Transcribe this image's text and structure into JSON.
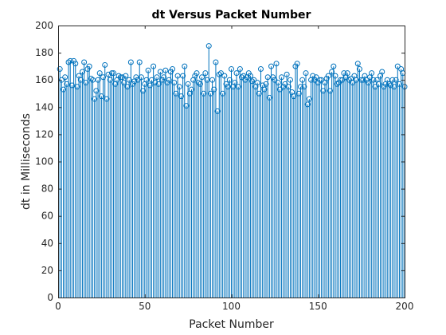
{
  "chart_data": {
    "type": "stem",
    "title": "dt Versus Packet Number",
    "xlabel": "Packet Number",
    "ylabel": "dt in Milliseconds",
    "xlim": [
      0,
      200
    ],
    "ylim": [
      0,
      200
    ],
    "xticks": [
      0,
      50,
      100,
      150,
      200
    ],
    "yticks": [
      0,
      20,
      40,
      60,
      80,
      100,
      120,
      140,
      160,
      180,
      200
    ],
    "grid": false,
    "marker": "circle",
    "color": "#0072BD",
    "x": [
      1,
      2,
      3,
      4,
      5,
      6,
      7,
      8,
      9,
      10,
      11,
      12,
      13,
      14,
      15,
      16,
      17,
      18,
      19,
      20,
      21,
      22,
      23,
      24,
      25,
      26,
      27,
      28,
      29,
      30,
      31,
      32,
      33,
      34,
      35,
      36,
      37,
      38,
      39,
      40,
      41,
      42,
      43,
      44,
      45,
      46,
      47,
      48,
      49,
      50,
      51,
      52,
      53,
      54,
      55,
      56,
      57,
      58,
      59,
      60,
      61,
      62,
      63,
      64,
      65,
      66,
      67,
      68,
      69,
      70,
      71,
      72,
      73,
      74,
      75,
      76,
      77,
      78,
      79,
      80,
      81,
      82,
      83,
      84,
      85,
      86,
      87,
      88,
      89,
      90,
      91,
      92,
      93,
      94,
      95,
      96,
      97,
      98,
      99,
      100,
      101,
      102,
      103,
      104,
      105,
      106,
      107,
      108,
      109,
      110,
      111,
      112,
      113,
      114,
      115,
      116,
      117,
      118,
      119,
      120,
      121,
      122,
      123,
      124,
      125,
      126,
      127,
      128,
      129,
      130,
      131,
      132,
      133,
      134,
      135,
      136,
      137,
      138,
      139,
      140,
      141,
      142,
      143,
      144,
      145,
      146,
      147,
      148,
      149,
      150,
      151,
      152,
      153,
      154,
      155,
      156,
      157,
      158,
      159,
      160,
      161,
      162,
      163,
      164,
      165,
      166,
      167,
      168,
      169,
      170,
      171,
      172,
      173,
      174,
      175,
      176,
      177,
      178,
      179,
      180,
      181,
      182,
      183,
      184,
      185,
      186,
      187,
      188,
      189,
      190,
      191,
      192,
      193,
      194,
      195,
      196,
      197,
      198,
      199,
      200
    ],
    "values": [
      168,
      160,
      153,
      162,
      157,
      173,
      174,
      156,
      174,
      172,
      155,
      163,
      160,
      166,
      173,
      158,
      168,
      170,
      161,
      160,
      146,
      152,
      160,
      165,
      148,
      162,
      171,
      146,
      164,
      160,
      165,
      165,
      157,
      160,
      163,
      162,
      162,
      158,
      163,
      155,
      160,
      173,
      157,
      159,
      162,
      160,
      173,
      162,
      152,
      157,
      160,
      167,
      156,
      160,
      170,
      158,
      162,
      157,
      166,
      160,
      162,
      167,
      158,
      160,
      166,
      168,
      158,
      150,
      163,
      155,
      148,
      163,
      170,
      141,
      157,
      150,
      153,
      160,
      163,
      165,
      158,
      157,
      162,
      150,
      165,
      160,
      185,
      150,
      160,
      153,
      173,
      137,
      164,
      165,
      150,
      163,
      157,
      155,
      160,
      168,
      155,
      158,
      165,
      155,
      168,
      162,
      163,
      160,
      162,
      165,
      163,
      159,
      160,
      155,
      158,
      150,
      168,
      156,
      153,
      157,
      162,
      147,
      170,
      162,
      160,
      172,
      158,
      153,
      162,
      155,
      157,
      164,
      155,
      160,
      151,
      148,
      170,
      172,
      150,
      155,
      160,
      155,
      165,
      142,
      146,
      160,
      163,
      160,
      162,
      158,
      160,
      160,
      152,
      158,
      161,
      163,
      152,
      166,
      170,
      163,
      157,
      158,
      160,
      160,
      165,
      162,
      165,
      160,
      161,
      158,
      163,
      160,
      172,
      168,
      160,
      160,
      163,
      160,
      158,
      162,
      165,
      160,
      155,
      160,
      157,
      163,
      166,
      155,
      157,
      160,
      157,
      156,
      160,
      155,
      160,
      170,
      157,
      168,
      165,
      155
    ]
  }
}
